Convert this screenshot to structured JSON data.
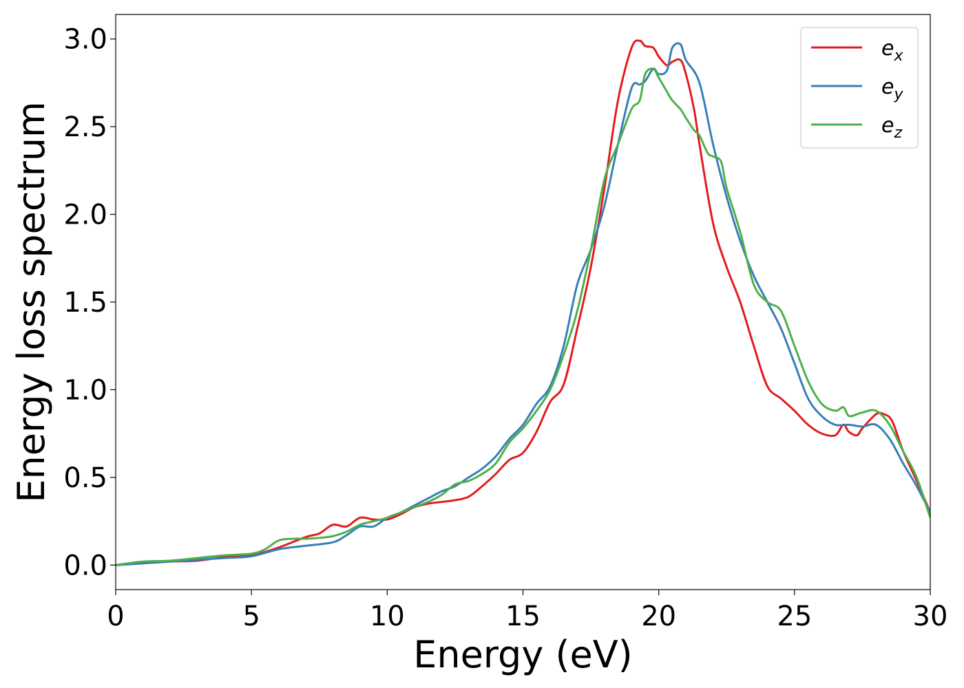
{
  "chart_data": {
    "type": "line",
    "xlabel": "Energy (eV)",
    "ylabel": "Energy loss spectrum",
    "xlim": [
      0,
      30
    ],
    "ylim": [
      -0.14,
      3.14
    ],
    "xticks": [
      "0",
      "5",
      "10",
      "15",
      "20",
      "25",
      "30"
    ],
    "yticks": [
      "0.0",
      "0.5",
      "1.0",
      "1.5",
      "2.0",
      "2.5",
      "3.0"
    ],
    "grid": false,
    "legend_position": "top-right",
    "series": [
      {
        "name": "e_x",
        "legend_base": "e",
        "legend_sub": "x",
        "color": "#e41a1c",
        "x": [
          0,
          1,
          2,
          3,
          4,
          5,
          6,
          7,
          7.5,
          8,
          8.5,
          9,
          9.5,
          10,
          10.5,
          11,
          11.5,
          12,
          12.5,
          13,
          13.5,
          14,
          14.5,
          15,
          15.5,
          16,
          16.5,
          17,
          17.5,
          18,
          18.5,
          19,
          19.3,
          19.5,
          19.8,
          20,
          20.3,
          20.5,
          20.8,
          21,
          21.3,
          21.5,
          22,
          22.5,
          23,
          23.5,
          24,
          24.5,
          25,
          25.5,
          26,
          26.5,
          26.8,
          27,
          27.3,
          27.5,
          28,
          28.3,
          28.6,
          29,
          29.5,
          30
        ],
        "y": [
          0,
          0.01,
          0.02,
          0.025,
          0.045,
          0.055,
          0.1,
          0.16,
          0.18,
          0.23,
          0.22,
          0.27,
          0.26,
          0.26,
          0.29,
          0.33,
          0.35,
          0.36,
          0.37,
          0.39,
          0.45,
          0.52,
          0.6,
          0.64,
          0.76,
          0.93,
          1.03,
          1.35,
          1.7,
          2.15,
          2.65,
          2.95,
          2.99,
          2.96,
          2.95,
          2.9,
          2.85,
          2.87,
          2.88,
          2.8,
          2.6,
          2.4,
          1.95,
          1.7,
          1.5,
          1.25,
          1.02,
          0.95,
          0.88,
          0.8,
          0.75,
          0.74,
          0.8,
          0.76,
          0.74,
          0.78,
          0.86,
          0.86,
          0.82,
          0.65,
          0.48,
          0.3
        ]
      },
      {
        "name": "e_y",
        "legend_base": "e",
        "legend_sub": "y",
        "color": "#377eb8",
        "x": [
          0,
          1,
          2,
          3,
          4,
          5,
          6,
          7,
          8,
          8.5,
          9,
          9.5,
          10,
          10.5,
          11,
          11.5,
          12,
          12.5,
          13,
          13.5,
          14,
          14.5,
          15,
          15.5,
          16,
          16.5,
          17,
          17.5,
          18,
          18.5,
          19,
          19.3,
          19.5,
          19.8,
          20,
          20.3,
          20.5,
          20.8,
          21,
          21.5,
          22,
          22.5,
          23,
          23.5,
          24,
          24.5,
          25,
          25.5,
          26,
          26.5,
          27,
          27.5,
          28,
          28.5,
          29,
          29.5,
          30
        ],
        "y": [
          0,
          0.01,
          0.02,
          0.03,
          0.04,
          0.05,
          0.09,
          0.11,
          0.13,
          0.17,
          0.22,
          0.22,
          0.27,
          0.3,
          0.34,
          0.38,
          0.42,
          0.45,
          0.5,
          0.55,
          0.62,
          0.72,
          0.8,
          0.92,
          1.02,
          1.25,
          1.6,
          1.8,
          2.05,
          2.4,
          2.72,
          2.74,
          2.76,
          2.83,
          2.8,
          2.82,
          2.95,
          2.97,
          2.88,
          2.75,
          2.4,
          2.1,
          1.85,
          1.65,
          1.5,
          1.35,
          1.15,
          0.95,
          0.85,
          0.8,
          0.8,
          0.79,
          0.8,
          0.72,
          0.58,
          0.45,
          0.3
        ]
      },
      {
        "name": "e_z",
        "legend_base": "e",
        "legend_sub": "z",
        "color": "#4daf4a",
        "x": [
          0,
          1,
          2,
          3,
          4,
          5,
          5.5,
          6,
          6.5,
          7,
          7.5,
          8,
          8.5,
          9,
          9.5,
          10,
          10.5,
          11,
          11.5,
          12,
          12.5,
          13,
          13.5,
          14,
          14.5,
          15,
          15.5,
          16,
          16.5,
          17,
          17.5,
          18,
          18.5,
          19,
          19.3,
          19.5,
          19.8,
          20,
          20.3,
          20.5,
          20.8,
          21,
          21.3,
          21.5,
          21.8,
          22,
          22.3,
          22.5,
          23,
          23.5,
          24,
          24.5,
          25,
          25.5,
          26,
          26.5,
          26.8,
          27,
          27.3,
          27.5,
          28,
          28.5,
          29,
          29.5,
          30
        ],
        "y": [
          0,
          0.02,
          0.025,
          0.04,
          0.055,
          0.065,
          0.09,
          0.14,
          0.15,
          0.15,
          0.155,
          0.165,
          0.19,
          0.23,
          0.25,
          0.27,
          0.3,
          0.33,
          0.36,
          0.4,
          0.46,
          0.48,
          0.52,
          0.58,
          0.7,
          0.78,
          0.88,
          1.0,
          1.2,
          1.45,
          1.8,
          2.2,
          2.4,
          2.6,
          2.65,
          2.8,
          2.83,
          2.78,
          2.7,
          2.65,
          2.6,
          2.55,
          2.48,
          2.45,
          2.35,
          2.33,
          2.3,
          2.15,
          1.9,
          1.6,
          1.5,
          1.45,
          1.25,
          1.05,
          0.92,
          0.88,
          0.9,
          0.85,
          0.86,
          0.87,
          0.88,
          0.8,
          0.65,
          0.5,
          0.27
        ]
      }
    ]
  }
}
